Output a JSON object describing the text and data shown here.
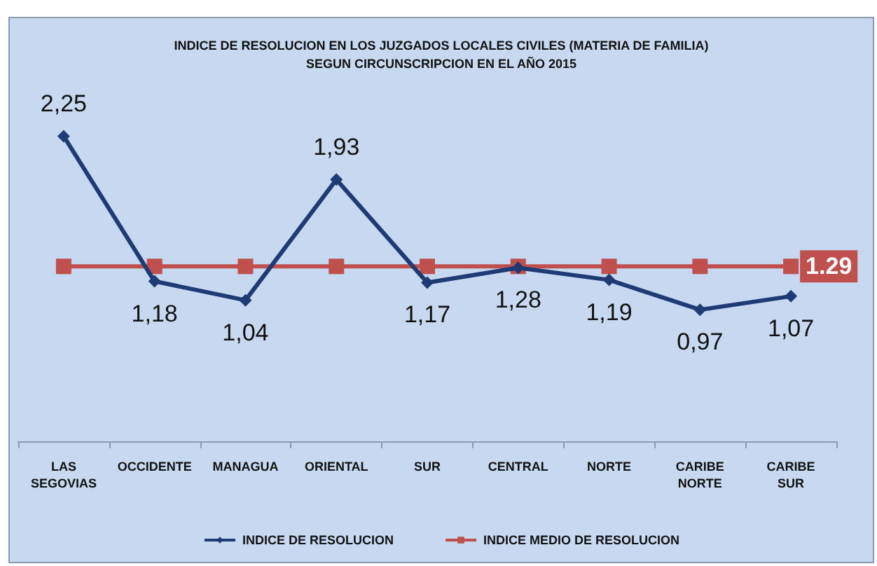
{
  "chart_data": {
    "type": "line",
    "title": "INDICE DE RESOLUCION EN LOS JUZGADOS LOCALES CIVILES (MATERIA DE FAMILIA)\nSEGUN CIRCUNSCRIPCION EN EL AÑO 2015",
    "categories": [
      "LAS\nSEGOVIAS",
      "OCCIDENTE",
      "MANAGUA",
      "ORIENTAL",
      "SUR",
      "CENTRAL",
      "NORTE",
      "CARIBE\nNORTE",
      "CARIBE\nSUR"
    ],
    "series": [
      {
        "name": "INDICE DE RESOLUCION",
        "color": "#1f3b73",
        "marker": "diamond",
        "values": [
          2.25,
          1.18,
          1.04,
          1.93,
          1.17,
          1.28,
          1.19,
          0.97,
          1.07
        ],
        "value_labels": [
          "2,25",
          "1,18",
          "1,04",
          "1,93",
          "1,17",
          "1,28",
          "1,19",
          "0,97",
          "1,07"
        ]
      },
      {
        "name": "INDICE MEDIO DE RESOLUCION",
        "color": "#c0504d",
        "marker": "square",
        "values": [
          1.29,
          1.29,
          1.29,
          1.29,
          1.29,
          1.29,
          1.29,
          1.29,
          1.29
        ],
        "value_labels": [
          null,
          null,
          null,
          null,
          null,
          null,
          null,
          null,
          "1.29"
        ]
      }
    ],
    "legend": "bottom"
  }
}
